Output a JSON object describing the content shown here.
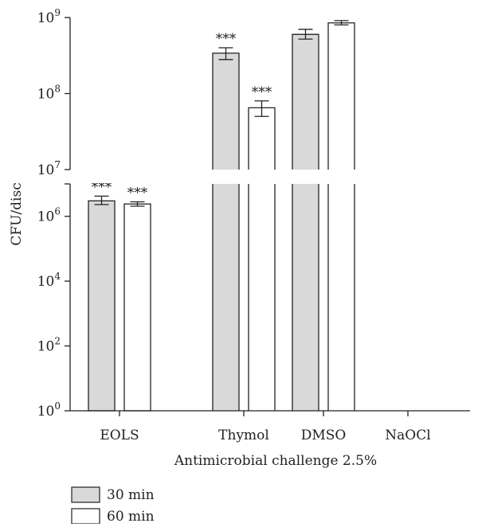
{
  "chart_data": {
    "type": "bar",
    "y_scale": "log",
    "y_axis_broken": true,
    "ylabel": "CFU/disc",
    "xlabel": "Antimicrobial challenge 2.5%",
    "categories": [
      "EOLS",
      "Thymol",
      "DMSO",
      "NaOCl"
    ],
    "y_tick_labels": [
      {
        "base": "10",
        "exp": "0",
        "value": 1
      },
      {
        "base": "10",
        "exp": "2",
        "value": 100
      },
      {
        "base": "10",
        "exp": "4",
        "value": 10000
      },
      {
        "base": "10",
        "exp": "6",
        "value": 1000000
      },
      {
        "base": "10",
        "exp": "7",
        "value": 10000000
      },
      {
        "base": "10",
        "exp": "8",
        "value": 100000000
      },
      {
        "base": "10",
        "exp": "9",
        "value": 1000000000
      }
    ],
    "series": [
      {
        "name": "30 min",
        "color": "#d9d9d9",
        "values": [
          3000000,
          340000000,
          600000000,
          0
        ],
        "error": [
          [
            2300000,
            4200000
          ],
          [
            280000000,
            400000000
          ],
          [
            520000000,
            700000000
          ],
          null
        ],
        "annotations": [
          "***",
          "***",
          "",
          ""
        ]
      },
      {
        "name": "60 min",
        "color": "#ffffff",
        "values": [
          2400000,
          65000000,
          850000000,
          0
        ],
        "error": [
          [
            2050000,
            2800000
          ],
          [
            50000000,
            80000000
          ],
          [
            800000000,
            910000000
          ],
          null
        ],
        "annotations": [
          "***",
          "***",
          "",
          ""
        ]
      }
    ],
    "legend_position": "bottom-left"
  }
}
